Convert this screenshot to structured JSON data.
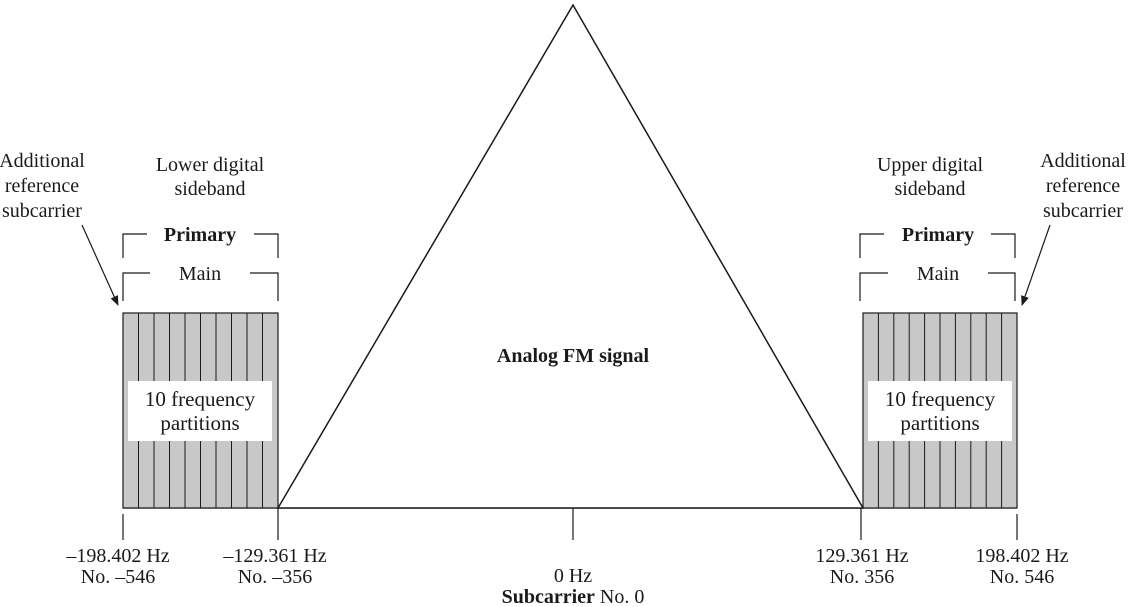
{
  "center_label": "Analog FM signal",
  "lower_sideband": {
    "title_line1": "Lower digital",
    "title_line2": "sideband",
    "primary_label": "Primary",
    "main_label": "Main",
    "partitions_line1": "10 frequency",
    "partitions_line2": "partitions",
    "ref_line1": "Additional",
    "ref_line2": "reference",
    "ref_line3": "subcarrier",
    "partition_count": 10
  },
  "upper_sideband": {
    "title_line1": "Upper digital",
    "title_line2": "sideband",
    "primary_label": "Primary",
    "main_label": "Main",
    "partitions_line1": "10 frequency",
    "partitions_line2": "partitions",
    "ref_line1": "Additional",
    "ref_line2": "reference",
    "ref_line3": "subcarrier",
    "partition_count": 10
  },
  "axis_labels": {
    "outer_left_freq": "–198.402 Hz",
    "outer_left_no": "No. –546",
    "inner_left_freq": "–129.361 Hz",
    "inner_left_no": "No. –356",
    "center_freq": "0 Hz",
    "center_no_bold": "Subcarrier",
    "center_no_rest": " No. 0",
    "inner_right_freq": "129.361 Hz",
    "inner_right_no": "No. 356",
    "outer_right_freq": "198.402 Hz",
    "outer_right_no": "No. 546"
  },
  "colors": {
    "sideband_fill": "#c8c8c8",
    "line": "#1a1a1a",
    "label_box": "#ffffff"
  }
}
